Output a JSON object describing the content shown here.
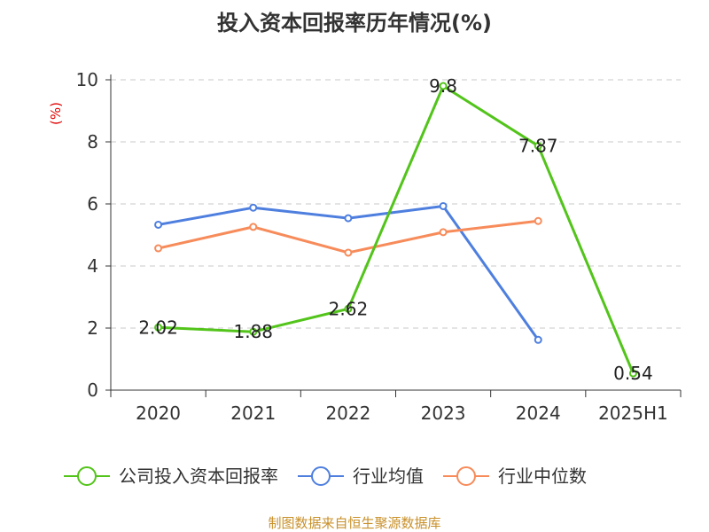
{
  "chart_data": {
    "type": "line",
    "title": "投入资本回报率历年情况(%)",
    "ylabel": "(%)",
    "xlabel": "",
    "categories": [
      "2020",
      "2021",
      "2022",
      "2023",
      "2024",
      "2025H1"
    ],
    "ylim": [
      0,
      10
    ],
    "yticks": [
      "0",
      "2",
      "4",
      "6",
      "8",
      "10"
    ],
    "grid": true,
    "legend_position": "bottom",
    "series": [
      {
        "name": "公司投入资本回报率",
        "color": "#52c41a",
        "values": [
          2.02,
          1.88,
          2.62,
          9.8,
          7.87,
          0.54
        ],
        "labels": [
          "2.02",
          "1.88",
          "2.62",
          "9.8",
          "7.87",
          "0.54"
        ]
      },
      {
        "name": "行业均值",
        "color": "#4e7fdf",
        "values": [
          5.33,
          5.88,
          5.54,
          5.93,
          1.62,
          null
        ]
      },
      {
        "name": "行业中位数",
        "color": "#f78b5a",
        "values": [
          4.57,
          5.26,
          4.43,
          5.09,
          5.45,
          null
        ]
      }
    ]
  },
  "footer": {
    "source": "制图数据来自恒生聚源数据库"
  }
}
